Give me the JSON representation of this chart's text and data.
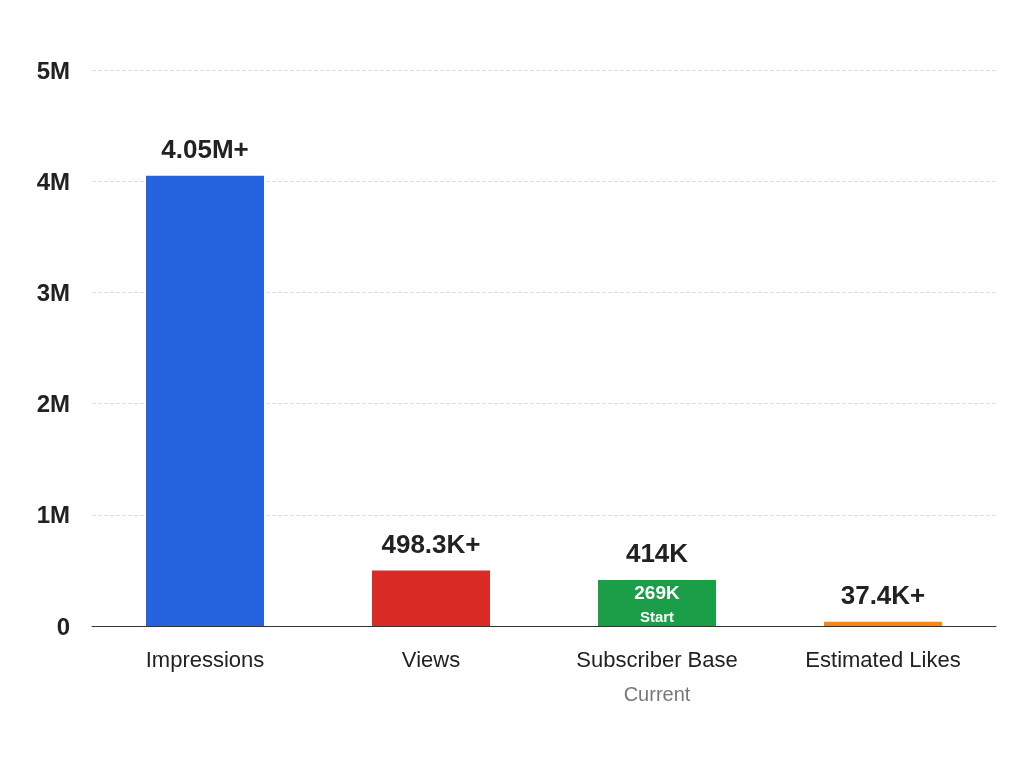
{
  "chart_data": {
    "type": "bar",
    "categories": [
      "Impressions",
      "Views",
      "Subscriber Base",
      "Estimated Likes"
    ],
    "values": [
      4050000,
      498300,
      414000,
      37400
    ],
    "colors": [
      "#2463dd",
      "#d92b25",
      "#1a9e48",
      "#fb8514"
    ],
    "value_labels": [
      "4.05M+",
      "498.3K+",
      "414K",
      "37.4K+"
    ],
    "ylim": [
      0,
      5000000
    ],
    "yticks": [
      {
        "value": 0,
        "label": "0"
      },
      {
        "value": 1000000,
        "label": "1M"
      },
      {
        "value": 2000000,
        "label": "2M"
      },
      {
        "value": 3000000,
        "label": "3M"
      },
      {
        "value": 4000000,
        "label": "4M"
      },
      {
        "value": 5000000,
        "label": "5M"
      }
    ],
    "grid": "y",
    "annotations": [
      "269K",
      "Start",
      "Current"
    ]
  }
}
